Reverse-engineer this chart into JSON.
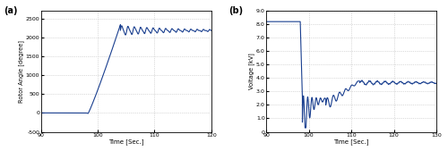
{
  "fig_width": 5.0,
  "fig_height": 1.69,
  "dpi": 100,
  "background_color": "#ffffff",
  "subplot_a": {
    "label": "(a)",
    "xlabel": "Time [Sec.]",
    "ylabel": "Rotor Angle [degree]",
    "xlim": [
      90,
      120
    ],
    "ylim": [
      -500,
      2700
    ],
    "xticks": [
      90,
      100,
      110,
      120
    ],
    "xtick_labels": [
      "90",
      "100",
      "110",
      "120"
    ],
    "yticks": [
      -500,
      0,
      500,
      1000,
      1500,
      2000,
      2500
    ],
    "ytick_labels": [
      "-500",
      "0",
      "500.0",
      "1000",
      "1500",
      "2000",
      "2500"
    ],
    "line_color": "#1a3f8f",
    "grid_color": "#bbbbbb",
    "grid_style": ":"
  },
  "subplot_b": {
    "label": "(b)",
    "xlabel": "Time [Sec.]",
    "ylabel": "Voltage [kV]",
    "xlim": [
      90,
      130
    ],
    "ylim": [
      0,
      9
    ],
    "xticks": [
      90,
      100,
      110,
      120,
      130
    ],
    "xtick_labels": [
      "90",
      "100",
      "110",
      "120",
      "130"
    ],
    "yticks": [
      0,
      1,
      2,
      3,
      4,
      5,
      6,
      7,
      8,
      9
    ],
    "ytick_labels": [
      "0",
      "1.0",
      "2.0",
      "3.0",
      "4.0",
      "5.0",
      "6.0",
      "7.0",
      "8.0",
      "9.0"
    ],
    "line_color": "#1a3f8f",
    "grid_color": "#bbbbbb",
    "grid_style": ":"
  }
}
